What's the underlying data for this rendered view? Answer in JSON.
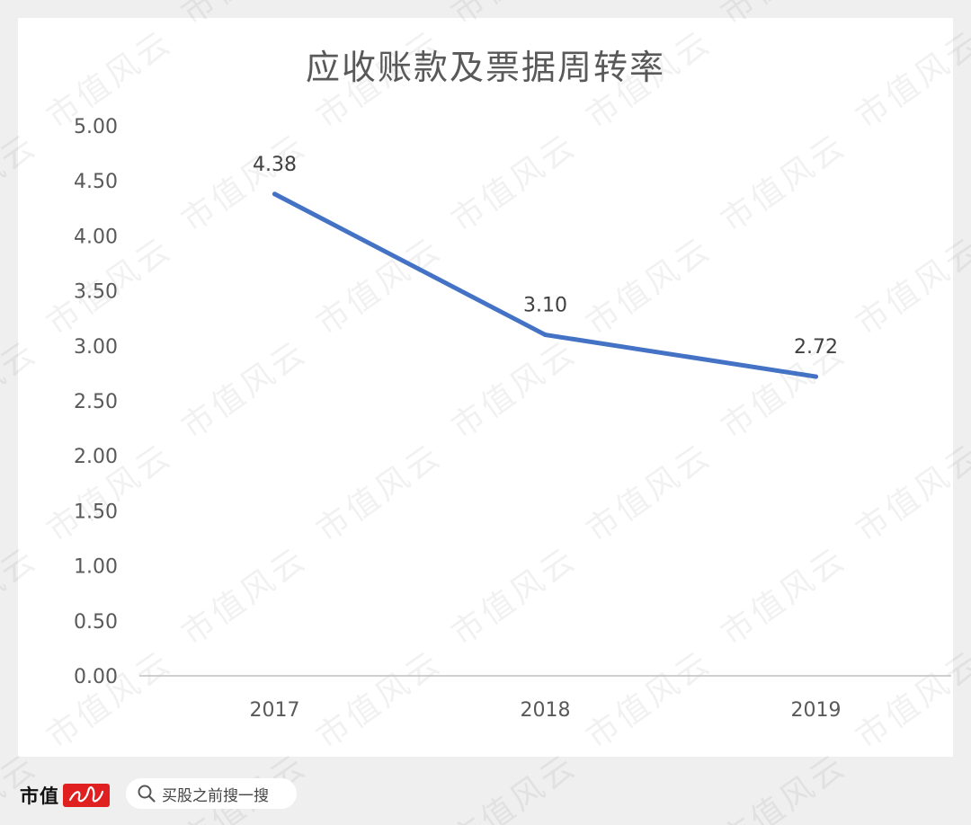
{
  "chart_data": {
    "type": "line",
    "title": "应收账款及票据周转率",
    "categories": [
      "2017",
      "2018",
      "2019"
    ],
    "series": [
      {
        "values": [
          4.38,
          3.1,
          2.72
        ],
        "data_labels": [
          "4.38",
          "3.10",
          "2.72"
        ],
        "color": "#4472c4"
      }
    ],
    "ylim": [
      0,
      5
    ],
    "yticks": [
      "0.00",
      "0.50",
      "1.00",
      "1.50",
      "2.00",
      "2.50",
      "3.00",
      "3.50",
      "4.00",
      "4.50",
      "5.00"
    ],
    "grid": false
  },
  "watermark": {
    "text": "市值风云"
  },
  "footer": {
    "brand_text": "市值",
    "brand_seal": "风云",
    "search_icon": "search-icon",
    "search_label": "买股之前搜一搜"
  },
  "colors": {
    "line": "#4472c4",
    "axis": "#bfbfbf",
    "text": "#595959",
    "seal": "#e02020"
  }
}
